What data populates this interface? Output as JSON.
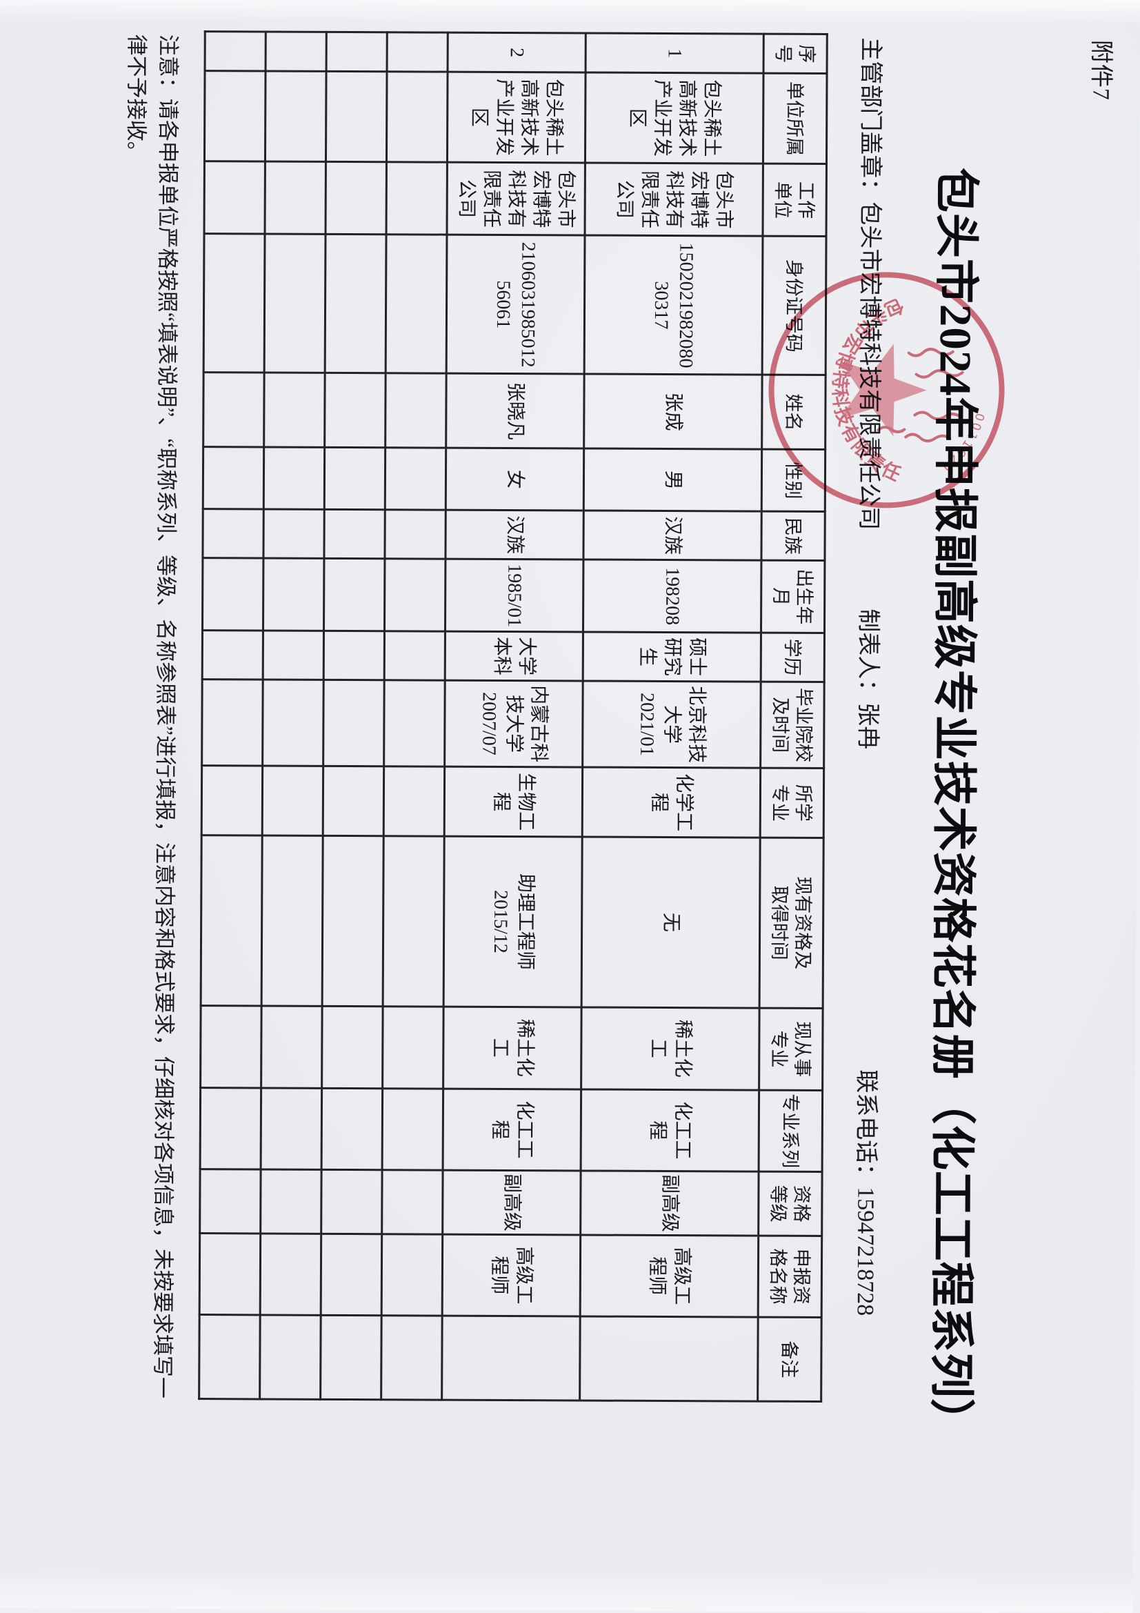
{
  "page": {
    "attachment_label": "附件7",
    "title": "包头市2024年申报副高级专业技术资格花名册（化工工程系列）",
    "meta": {
      "stamp_label": "主管部门盖章：包头市宏博特科技有限责任公司",
      "preparer": "制表人：张冉",
      "phone": "联系电话：15947218728"
    },
    "note_line1": "注意：请各申报单位严格按照“填表说明”、“职称系列、等级、名称参照表”进行填报，注意内容和格式要求，仔细核对各项信息，未按要求填写一",
    "note_line2": "律不予接收。"
  },
  "table": {
    "headers": [
      "序号",
      "单位所属",
      "工作\n单位",
      "身份证号码",
      "姓名",
      "性别",
      "民族",
      "出生年月",
      "学历",
      "毕业院校\n及时间",
      "所学\n专业",
      "现有资格及\n取得时间",
      "现从事\n专业",
      "专业系列",
      "资格\n等级",
      "申报资\n格名称",
      "备注"
    ],
    "rows": [
      [
        "1",
        "包头稀土高新技术产业开发区",
        "包头市宏博特科技有限责任公司",
        "1502021982080\n30317",
        "张成",
        "男",
        "汉族",
        "198208",
        "硕士研究生",
        "北京科技大学\n2021/01",
        "化学工程",
        "无",
        "稀土化工",
        "化工工程",
        "副高级",
        "高级工程师",
        ""
      ],
      [
        "2",
        "包头稀土高新技术产业开发区",
        "包头市宏博特科技有限责任公司",
        "2106031985012\n56061",
        "张晓凡",
        "女",
        "汉族",
        "1985/01",
        "大学本科",
        "内蒙古科技大学\n2007/07",
        "生物工程",
        "助理工程师\n2015/12",
        "稀土化工",
        "化工工程",
        "副高级",
        "高级工程师",
        ""
      ]
    ],
    "empty_row_count": 4
  },
  "stamp": {
    "company": "包头市宏博特科技有限责任公司",
    "serial_fragment": "0011620",
    "color": "#d5606e"
  },
  "colors": {
    "paper": "#e9ebf0",
    "grid_line": "#232327",
    "text": "#1b1c20",
    "stamp_red": "#d5606e",
    "stamp_pink": "#eda4ac"
  }
}
